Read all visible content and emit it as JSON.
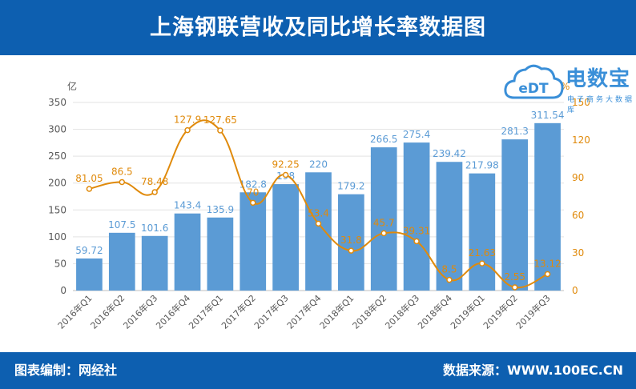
{
  "header": {
    "title": "上海钢联营收及同比增长率数据图"
  },
  "footer": {
    "left": "图表编制：网经社",
    "right": "数据来源：WWW.100EC.CN"
  },
  "logo": {
    "brand": "电数宝",
    "sub": "电子商务大数据库",
    "mark": "eDT",
    "color": "#3a8fd8"
  },
  "colors": {
    "bar": "#5b9bd5",
    "line": "#e08a0b",
    "header": "#0d5fb0",
    "axis": "#595959"
  },
  "chart_data": {
    "type": "bar",
    "categories": [
      "2016年Q1",
      "2016年Q2",
      "2016年Q3",
      "2016年Q4",
      "2017年Q1",
      "2017年Q2",
      "2017年Q3",
      "2017年Q4",
      "2018年Q1",
      "2018年Q2",
      "2018年Q3",
      "2018年Q4",
      "2019年Q1",
      "2019年Q2",
      "2019年Q3"
    ],
    "series": [
      {
        "values": [
          59.72,
          107.5,
          101.6,
          143.4,
          135.9,
          182.8,
          198,
          220,
          179.2,
          266.5,
          275.4,
          239.42,
          217.98,
          281.3,
          311.54
        ],
        "axis": "left",
        "render": "bar"
      },
      {
        "values": [
          81.05,
          86.5,
          78.48,
          127.9,
          127.65,
          70,
          92.25,
          53.4,
          31.8,
          45.7,
          39.31,
          8.5,
          21.63,
          2.55,
          13.12
        ],
        "axis": "right",
        "render": "line"
      }
    ],
    "left_axis": {
      "unit": "亿",
      "ylim": [
        0,
        350
      ],
      "ticks": [
        0,
        50,
        100,
        150,
        200,
        250,
        300,
        350
      ]
    },
    "right_axis": {
      "unit": "%",
      "ylim": [
        0,
        150
      ],
      "ticks": [
        0,
        30,
        60,
        90,
        120,
        150
      ]
    },
    "grid": true,
    "legend": "none"
  }
}
